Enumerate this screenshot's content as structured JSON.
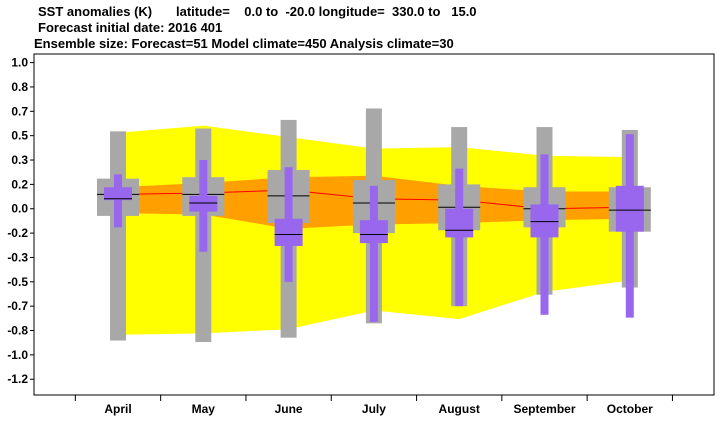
{
  "header": {
    "line1_title": "SST anomalies (K)",
    "line1_region": "latitude=    0.0 to  -20.0 longitude=  330.0 to   15.0",
    "line2": "Forecast initial date: 2016 401",
    "line3": "Ensemble size: Forecast=51 Model climate=450 Analysis climate=30"
  },
  "chart_data": {
    "type": "box",
    "categories": [
      "April",
      "May",
      "June",
      "July",
      "August",
      "September",
      "October"
    ],
    "yticks": [
      "1.0",
      "0.8",
      "0.7",
      "0.5",
      "0.3",
      "0.2",
      "0.0",
      "-0.2",
      "-0.3",
      "-0.5",
      "-0.7",
      "-0.8",
      "-1.0",
      "-1.2"
    ],
    "ylim": [
      -1.3,
      1.08
    ],
    "grid": false,
    "climate_range": {
      "yellow_upper": [
        0.53,
        0.58,
        0.5,
        0.42,
        0.43,
        0.37,
        0.36
      ],
      "yellow_lower": [
        -0.88,
        -0.87,
        -0.84,
        -0.71,
        -0.77,
        -0.58,
        -0.5
      ],
      "orange_upper": [
        0.15,
        0.18,
        0.22,
        0.23,
        0.16,
        0.12,
        0.12
      ],
      "orange_lower": [
        -0.03,
        -0.04,
        -0.14,
        -0.11,
        -0.1,
        -0.08,
        -0.07
      ],
      "median_line": [
        0.1,
        0.11,
        0.13,
        0.07,
        0.06,
        0.0,
        0.01
      ]
    },
    "model_climate_box": {
      "whisker_high": [
        0.54,
        0.56,
        0.62,
        0.7,
        0.57,
        0.57,
        0.55
      ],
      "whisker_low": [
        -0.92,
        -0.93,
        -0.9,
        -0.8,
        -0.68,
        -0.6,
        -0.55
      ],
      "q3": [
        0.21,
        0.22,
        0.27,
        0.2,
        0.17,
        0.15,
        0.15
      ],
      "q1": [
        -0.05,
        -0.05,
        -0.1,
        -0.17,
        -0.15,
        -0.13,
        -0.16
      ],
      "median": [
        0.1,
        0.1,
        0.09,
        0.04,
        0.01,
        0.0,
        -0.01
      ]
    },
    "forecast_box": {
      "whisker_high": [
        0.24,
        0.34,
        0.29,
        0.16,
        0.28,
        0.38,
        0.52
      ],
      "whisker_low": [
        -0.13,
        -0.3,
        -0.51,
        -0.79,
        -0.68,
        -0.74,
        -0.76
      ],
      "q3": [
        0.15,
        0.09,
        -0.07,
        -0.08,
        0.0,
        0.03,
        0.16
      ],
      "q1": [
        0.06,
        -0.02,
        -0.26,
        -0.24,
        -0.2,
        -0.2,
        -0.16
      ],
      "median": [
        0.07,
        0.04,
        -0.18,
        -0.18,
        -0.15,
        -0.09,
        -0.01
      ]
    },
    "colors": {
      "yellow": "#ffff00",
      "orange": "#ffa000",
      "grey": "#a8a8a8",
      "purple": "#9966ee",
      "red": "#ff0000",
      "median": "#000000"
    }
  }
}
